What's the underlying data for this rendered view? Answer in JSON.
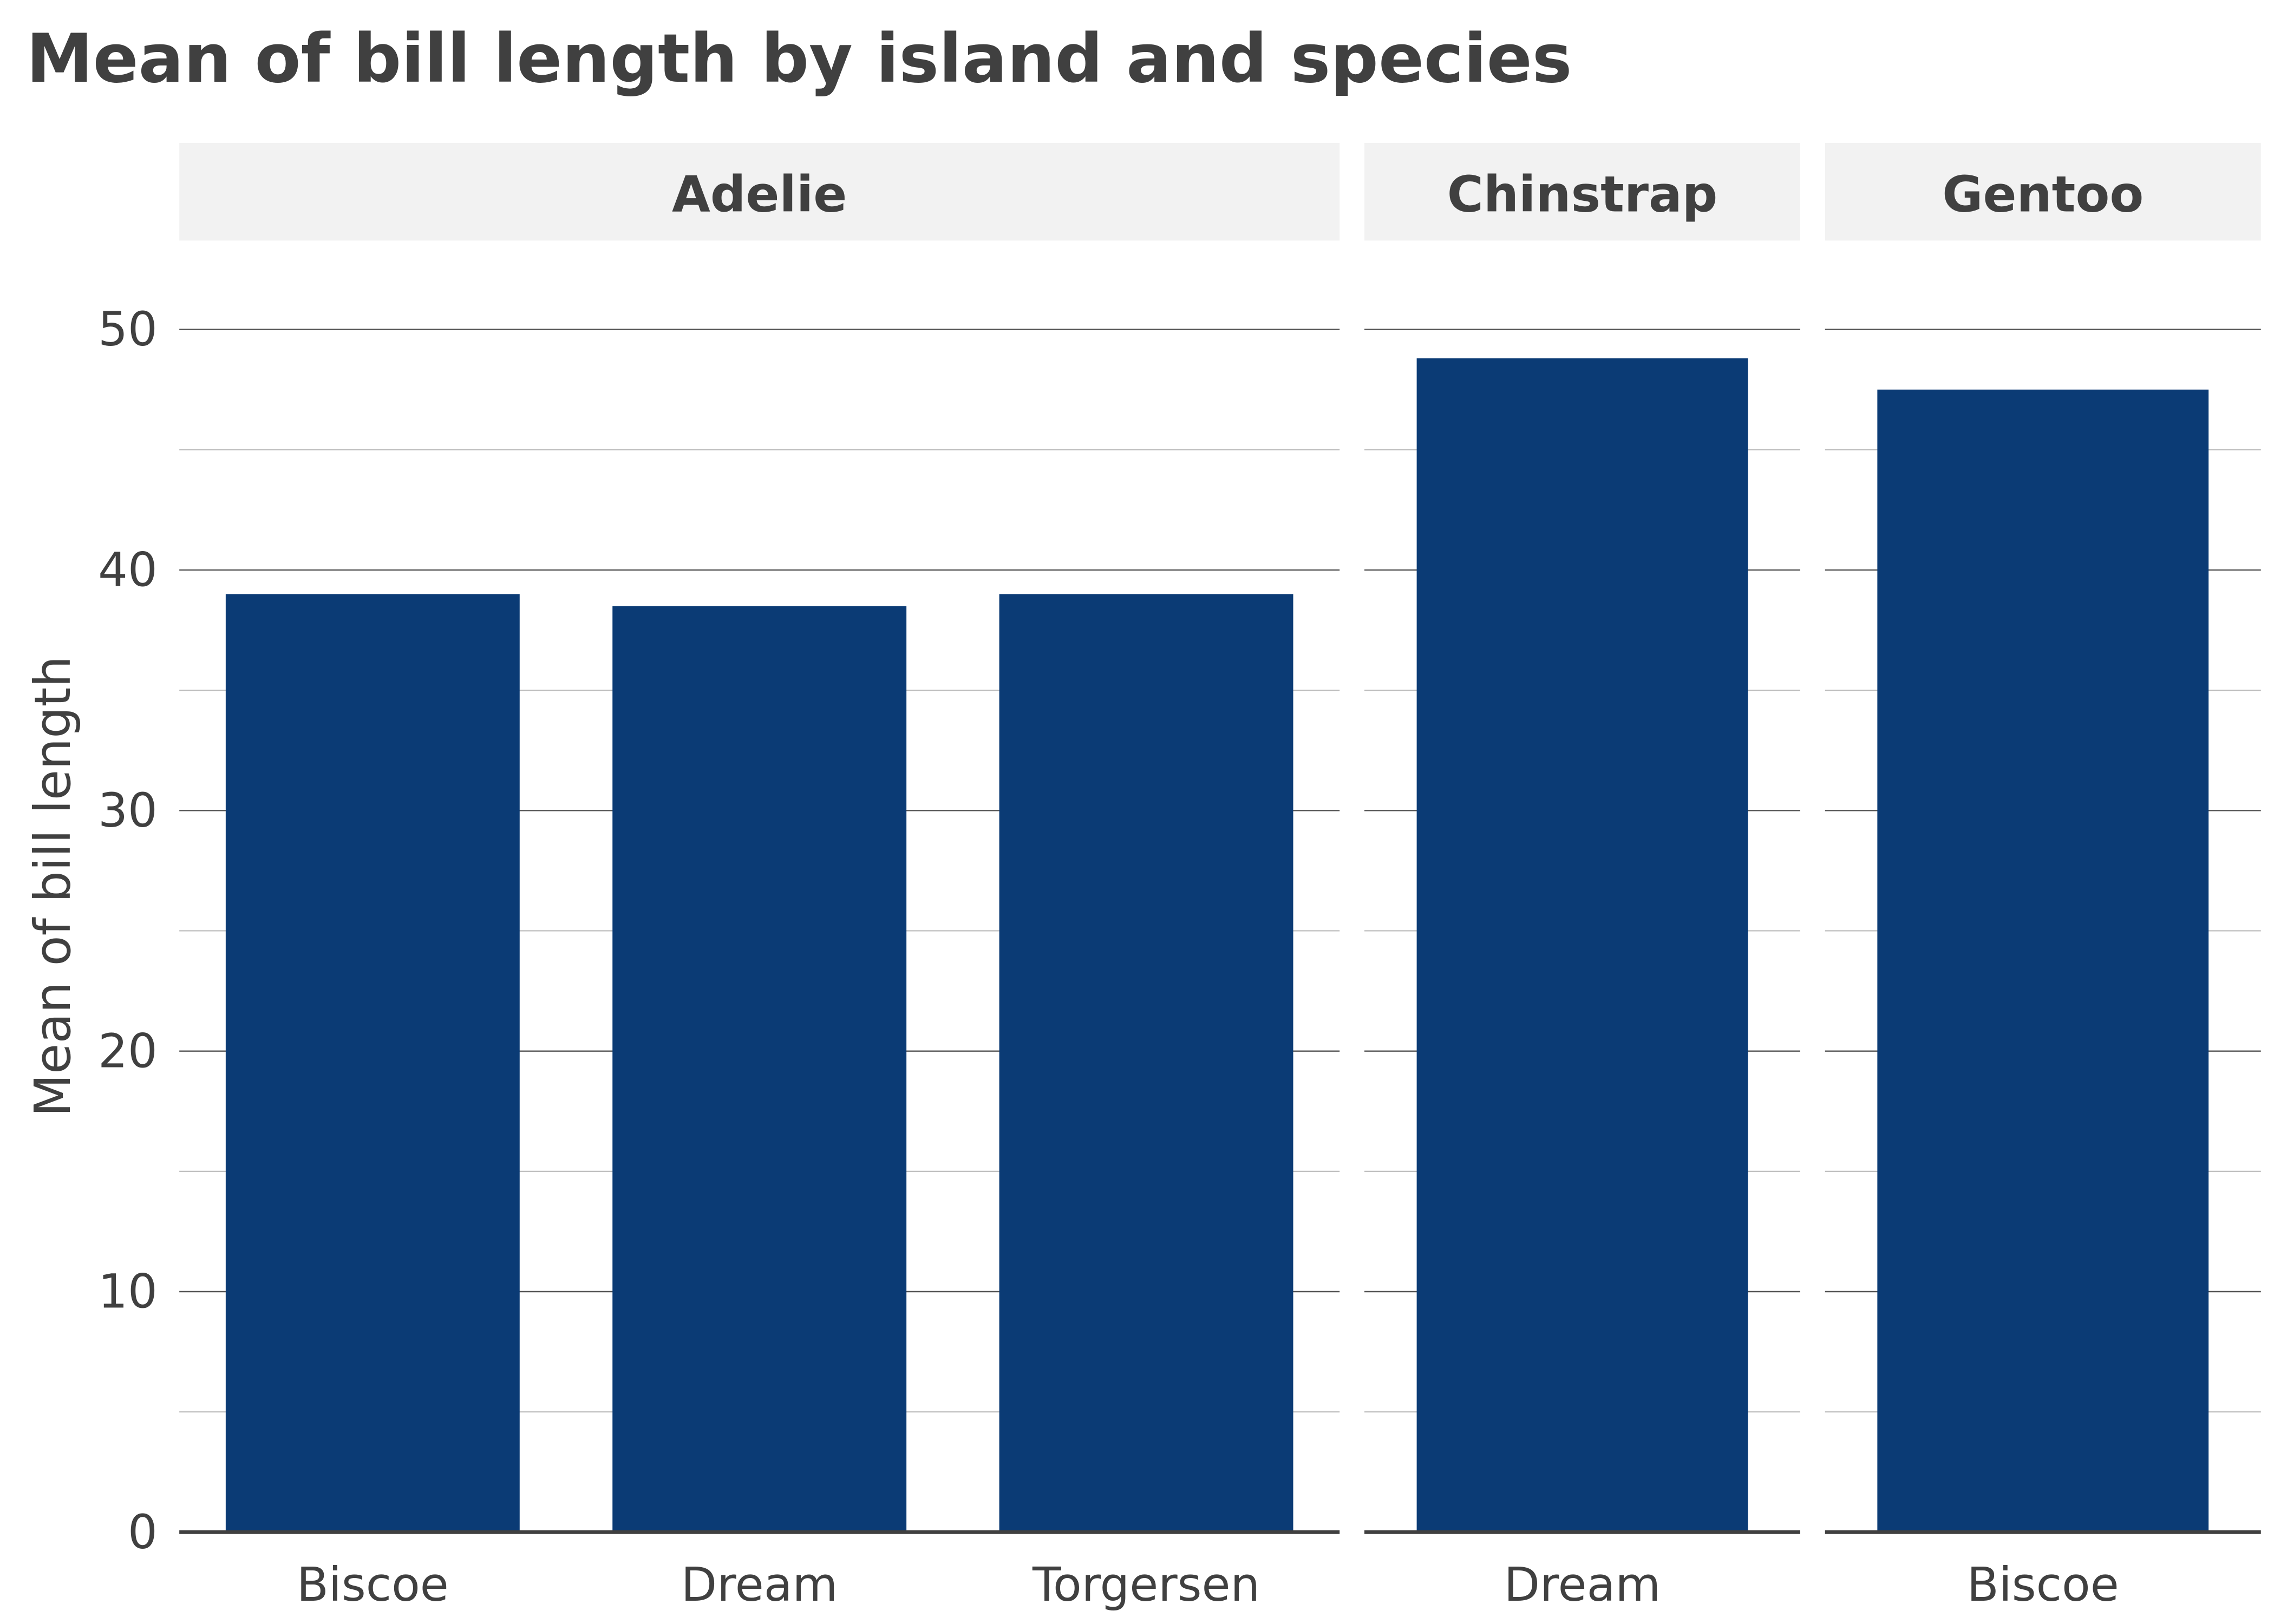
{
  "chart_data": {
    "type": "bar",
    "title": "Mean of bill length by island and species",
    "xlabel": "",
    "ylabel": "Mean of bill length",
    "ylim": [
      0,
      53
    ],
    "yticks": [
      0,
      10,
      20,
      30,
      40,
      50
    ],
    "grid": true,
    "bar_color": "#0b3b75",
    "facets": [
      {
        "label": "Adelie",
        "categories": [
          "Biscoe",
          "Dream",
          "Torgersen"
        ],
        "values": [
          39.0,
          38.5,
          39.0
        ]
      },
      {
        "label": "Chinstrap",
        "categories": [
          "Dream"
        ],
        "values": [
          48.8
        ]
      },
      {
        "label": "Gentoo",
        "categories": [
          "Biscoe"
        ],
        "values": [
          47.5
        ]
      }
    ]
  }
}
